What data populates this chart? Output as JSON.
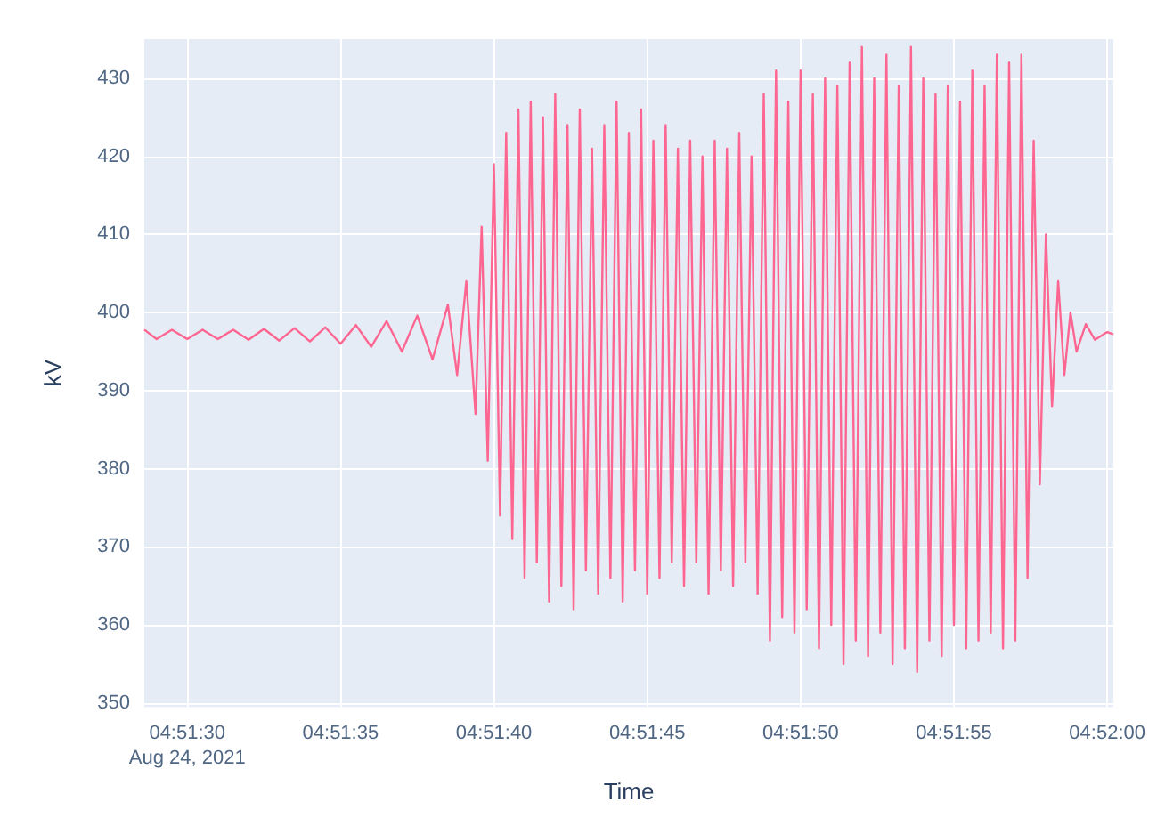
{
  "chart_data": {
    "type": "line",
    "xlabel": "Time",
    "ylabel": "kV",
    "grid": true,
    "marker": "none",
    "line_style": "solid",
    "xlim": [
      "2021-08-24T04:51:28.6",
      "2021-08-24T04:52:00.2"
    ],
    "ylim": [
      349.5,
      435
    ],
    "yticks": [
      350,
      360,
      370,
      380,
      390,
      400,
      410,
      420,
      430
    ],
    "xticks": [
      {
        "value": "2021-08-24T04:51:30",
        "label": "04:51:30\nAug 24, 2021"
      },
      {
        "value": "2021-08-24T04:51:35",
        "label": "04:51:35"
      },
      {
        "value": "2021-08-24T04:51:40",
        "label": "04:51:40"
      },
      {
        "value": "2021-08-24T04:51:45",
        "label": "04:51:45"
      },
      {
        "value": "2021-08-24T04:51:50",
        "label": "04:51:50"
      },
      {
        "value": "2021-08-24T04:51:55",
        "label": "04:51:55"
      },
      {
        "value": "2021-08-24T04:52:00",
        "label": "04:52:00"
      }
    ],
    "series": [
      {
        "color": "#fd6690",
        "x": [
          "2021-08-24T04:51:28.6",
          "2021-08-24T04:51:29.0",
          "2021-08-24T04:51:29.5",
          "2021-08-24T04:51:30.0",
          "2021-08-24T04:51:30.5",
          "2021-08-24T04:51:31.0",
          "2021-08-24T04:51:31.5",
          "2021-08-24T04:51:32.0",
          "2021-08-24T04:51:32.5",
          "2021-08-24T04:51:33.0",
          "2021-08-24T04:51:33.5",
          "2021-08-24T04:51:34.0",
          "2021-08-24T04:51:34.5",
          "2021-08-24T04:51:35.0",
          "2021-08-24T04:51:35.5",
          "2021-08-24T04:51:36.0",
          "2021-08-24T04:51:36.5",
          "2021-08-24T04:51:37.0",
          "2021-08-24T04:51:37.5",
          "2021-08-24T04:51:38.0",
          "2021-08-24T04:51:38.5",
          "2021-08-24T04:51:38.8",
          "2021-08-24T04:51:39.1",
          "2021-08-24T04:51:39.4",
          "2021-08-24T04:51:39.6",
          "2021-08-24T04:51:39.8",
          "2021-08-24T04:51:40.0",
          "2021-08-24T04:51:40.2",
          "2021-08-24T04:51:40.4",
          "2021-08-24T04:51:40.6",
          "2021-08-24T04:51:40.8",
          "2021-08-24T04:51:41.0",
          "2021-08-24T04:51:41.2",
          "2021-08-24T04:51:41.4",
          "2021-08-24T04:51:41.6",
          "2021-08-24T04:51:41.8",
          "2021-08-24T04:51:42.0",
          "2021-08-24T04:51:42.2",
          "2021-08-24T04:51:42.4",
          "2021-08-24T04:51:42.6",
          "2021-08-24T04:51:42.8",
          "2021-08-24T04:51:43.0",
          "2021-08-24T04:51:43.2",
          "2021-08-24T04:51:43.4",
          "2021-08-24T04:51:43.6",
          "2021-08-24T04:51:43.8",
          "2021-08-24T04:51:44.0",
          "2021-08-24T04:51:44.2",
          "2021-08-24T04:51:44.4",
          "2021-08-24T04:51:44.6",
          "2021-08-24T04:51:44.8",
          "2021-08-24T04:51:45.0",
          "2021-08-24T04:51:45.2",
          "2021-08-24T04:51:45.4",
          "2021-08-24T04:51:45.6",
          "2021-08-24T04:51:45.8",
          "2021-08-24T04:51:46.0",
          "2021-08-24T04:51:46.2",
          "2021-08-24T04:51:46.4",
          "2021-08-24T04:51:46.6",
          "2021-08-24T04:51:46.8",
          "2021-08-24T04:51:47.0",
          "2021-08-24T04:51:47.2",
          "2021-08-24T04:51:47.4",
          "2021-08-24T04:51:47.6",
          "2021-08-24T04:51:47.8",
          "2021-08-24T04:51:48.0",
          "2021-08-24T04:51:48.2",
          "2021-08-24T04:51:48.4",
          "2021-08-24T04:51:48.6",
          "2021-08-24T04:51:48.8",
          "2021-08-24T04:51:49.0",
          "2021-08-24T04:51:49.2",
          "2021-08-24T04:51:49.4",
          "2021-08-24T04:51:49.6",
          "2021-08-24T04:51:49.8",
          "2021-08-24T04:51:50.0",
          "2021-08-24T04:51:50.2",
          "2021-08-24T04:51:50.4",
          "2021-08-24T04:51:50.6",
          "2021-08-24T04:51:50.8",
          "2021-08-24T04:51:51.0",
          "2021-08-24T04:51:51.2",
          "2021-08-24T04:51:51.4",
          "2021-08-24T04:51:51.6",
          "2021-08-24T04:51:51.8",
          "2021-08-24T04:51:52.0",
          "2021-08-24T04:51:52.2",
          "2021-08-24T04:51:52.4",
          "2021-08-24T04:51:52.6",
          "2021-08-24T04:51:52.8",
          "2021-08-24T04:51:53.0",
          "2021-08-24T04:51:53.2",
          "2021-08-24T04:51:53.4",
          "2021-08-24T04:51:53.6",
          "2021-08-24T04:51:53.8",
          "2021-08-24T04:51:54.0",
          "2021-08-24T04:51:54.2",
          "2021-08-24T04:51:54.4",
          "2021-08-24T04:51:54.6",
          "2021-08-24T04:51:54.8",
          "2021-08-24T04:51:55.0",
          "2021-08-24T04:51:55.2",
          "2021-08-24T04:51:55.4",
          "2021-08-24T04:51:55.6",
          "2021-08-24T04:51:55.8",
          "2021-08-24T04:51:56.0",
          "2021-08-24T04:51:56.2",
          "2021-08-24T04:51:56.4",
          "2021-08-24T04:51:56.6",
          "2021-08-24T04:51:56.8",
          "2021-08-24T04:51:57.0",
          "2021-08-24T04:51:57.2",
          "2021-08-24T04:51:57.4",
          "2021-08-24T04:51:57.6",
          "2021-08-24T04:51:57.8",
          "2021-08-24T04:51:58.0",
          "2021-08-24T04:51:58.2",
          "2021-08-24T04:51:58.4",
          "2021-08-24T04:51:58.6",
          "2021-08-24T04:51:58.8",
          "2021-08-24T04:51:59.0",
          "2021-08-24T04:51:59.3",
          "2021-08-24T04:51:59.6",
          "2021-08-24T04:52:00.0",
          "2021-08-24T04:52:00.2"
        ],
        "values": [
          397.8,
          396.6,
          397.8,
          396.6,
          397.8,
          396.6,
          397.8,
          396.5,
          397.9,
          396.4,
          398,
          396.3,
          398.1,
          396,
          398.4,
          395.6,
          398.9,
          395,
          399.6,
          394,
          401,
          392,
          404,
          387,
          411,
          381,
          419,
          374,
          423,
          371,
          426,
          366,
          427,
          368,
          425,
          363,
          428,
          365,
          424,
          362,
          426,
          367,
          421,
          364,
          424,
          366,
          427,
          363,
          423,
          367,
          426,
          364,
          422,
          366,
          424,
          368,
          421,
          365,
          422,
          368,
          420,
          364,
          422,
          367,
          421,
          365,
          423,
          368,
          420,
          364,
          428,
          358,
          431,
          361,
          427,
          359,
          431,
          362,
          428,
          357,
          430,
          360,
          429,
          355,
          432,
          358,
          434,
          356,
          430,
          359,
          433,
          355,
          429,
          357,
          434,
          354,
          430,
          358,
          428,
          356,
          429,
          360,
          427,
          357,
          431,
          358,
          429,
          359,
          433,
          357,
          432,
          358,
          433,
          366,
          422,
          378,
          410,
          388,
          404,
          392,
          400,
          395,
          398.5,
          396.5,
          397.5,
          397.2
        ]
      }
    ]
  }
}
